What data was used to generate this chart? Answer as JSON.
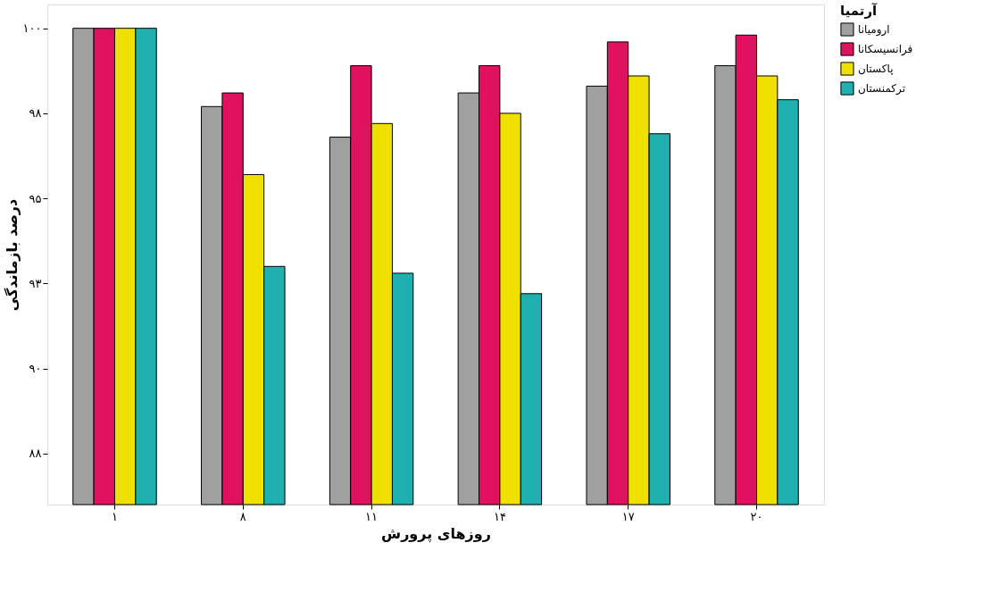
{
  "chart_data": {
    "type": "bar",
    "xlabel": "روزهای پرورش",
    "ylabel": "درصد بازماندگی",
    "legend_title": "آرتمیا",
    "legend": "top right",
    "categories": [
      "۱",
      "۸",
      "۱۱",
      "۱۴",
      "۱۷",
      "۲۰"
    ],
    "ylim": [
      86,
      100.7
    ],
    "yticks": [
      {
        "value": 100,
        "label": "۱۰۰"
      },
      {
        "value": 97.5,
        "label": "۹۸"
      },
      {
        "value": 95,
        "label": "۹۵"
      },
      {
        "value": 92.5,
        "label": "۹۳"
      },
      {
        "value": 90,
        "label": "۹۰"
      },
      {
        "value": 87.5,
        "label": "۸۸"
      }
    ],
    "grid": false,
    "series": [
      {
        "name": "ارومیانا",
        "color": "#a0a0a0",
        "values": [
          100,
          97.7,
          96.8,
          98.1,
          98.3,
          98.9
        ]
      },
      {
        "name": "فرانسیسکانا",
        "color": "#e0115f",
        "values": [
          100,
          98.1,
          98.9,
          98.9,
          99.6,
          99.8
        ]
      },
      {
        "name": "پاکستان",
        "color": "#f0e000",
        "values": [
          100,
          95.7,
          97.2,
          97.5,
          98.6,
          98.6
        ]
      },
      {
        "name": "ترکمنستان",
        "color": "#20b0b0",
        "values": [
          100,
          93.0,
          92.8,
          92.2,
          96.9,
          97.9
        ]
      }
    ]
  }
}
